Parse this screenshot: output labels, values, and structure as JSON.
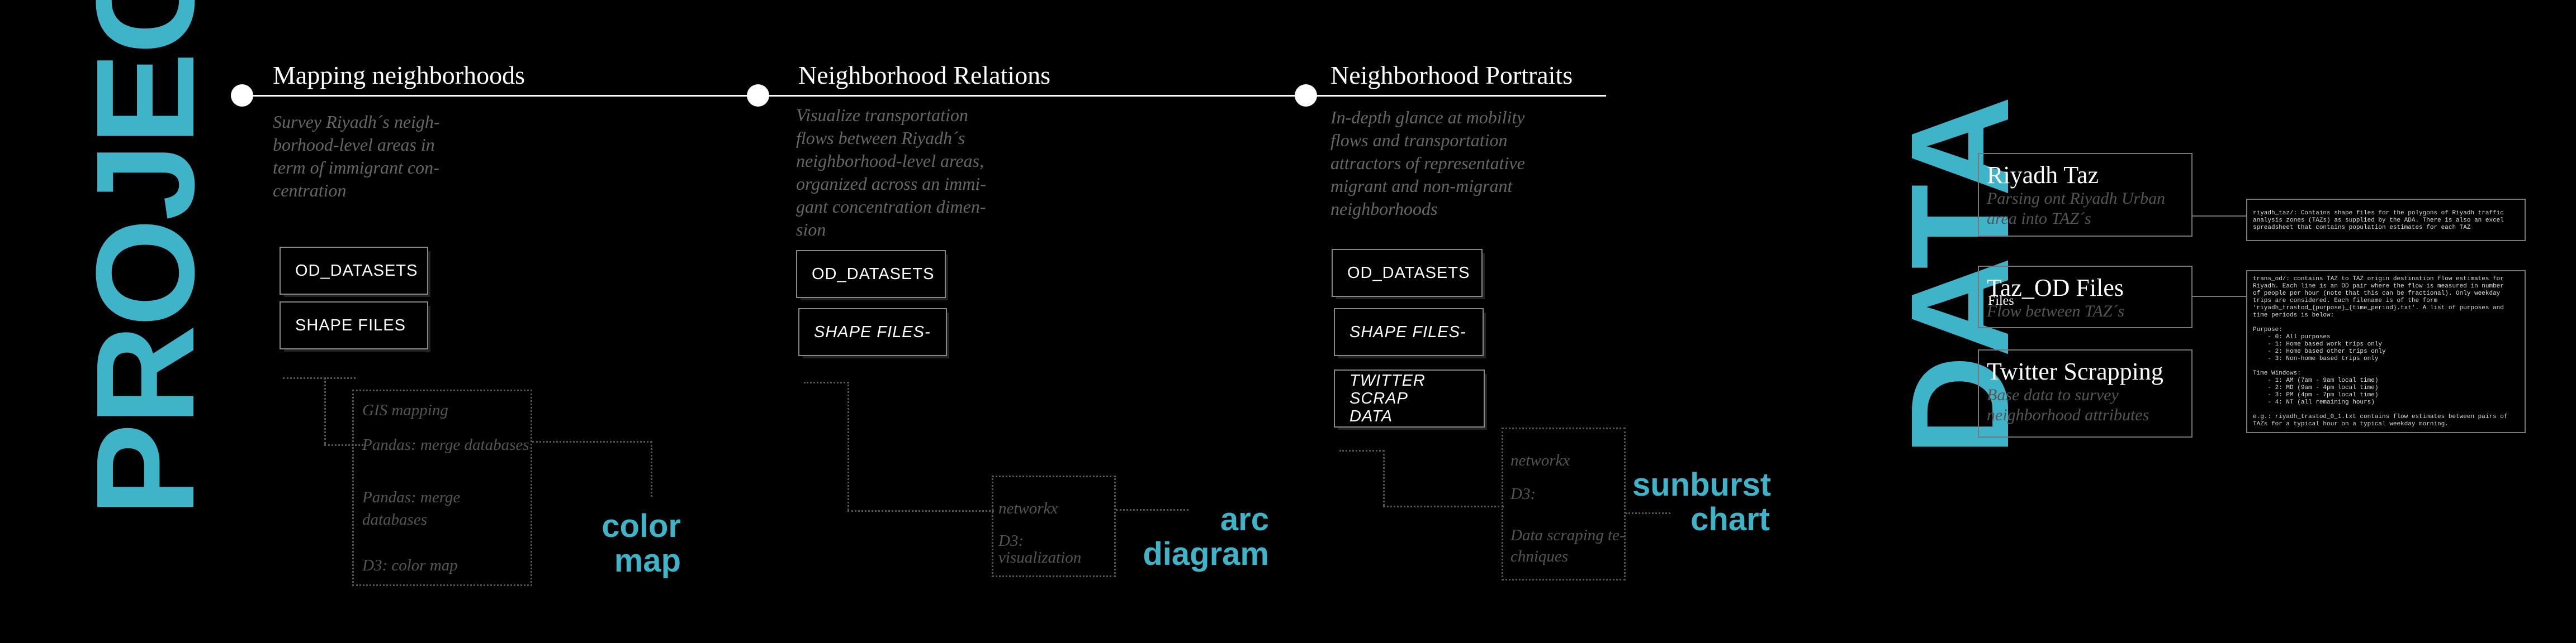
{
  "project": {
    "title": "PROJECT",
    "phases": [
      {
        "title": "Mapping neighborhoods",
        "description": "Survey Riyadh´s neigh-borhood-level areas in term of  immigrant con-centration",
        "datasets": [
          "OD_DATASETS",
          "SHAPE FILES"
        ],
        "tools": [
          "GIS mapping",
          "Pandas: merge databases",
          "Pandas: merge",
          "databases",
          "D3: color map"
        ],
        "viz_line1": "color",
        "viz_line2": "map"
      },
      {
        "title": "Neighborhood Relations",
        "description": "Visualize transportation flows between Riyadh´s neighborhood-level areas, organized across an immi-gant concentration dimen-sion",
        "datasets": [
          "OD_DATASETS",
          "SHAPE FILES-"
        ],
        "tools": [
          "networkx",
          "D3:",
          "visualization"
        ],
        "viz_line1": "arc",
        "viz_line2": "diagram"
      },
      {
        "title": "Neighborhood Portraits",
        "description": "In-depth glance at mobility flows and transportation attractors of  representative migrant and non-migrant neighborhoods",
        "datasets": [
          "OD_DATASETS",
          "SHAPE FILES-",
          "TWITTER SCRAP",
          "DATA"
        ],
        "tools": [
          "networkx",
          "D3:",
          "Data scraping te-",
          "chniques"
        ],
        "viz_line1": "sunburst",
        "viz_line2": "chart"
      }
    ]
  },
  "data": {
    "title": "DATA",
    "sources": [
      {
        "title": "Riyadh Taz",
        "subtitle": "Parsing ont Riyadh Urban area into TAZ´s"
      },
      {
        "title": "Taz_OD Files",
        "overlay": "Files",
        "subtitle": "Flow between TAZ´s"
      },
      {
        "title": "Twitter Scrapping",
        "subtitle": "Base data to survey neighborhood attributes"
      }
    ],
    "info_taz": "riyadh_taz/: Contains shape files for the polygons of Riyadh traffic\nanalysis zones (TAZs) as supplied by the ADA. There is also an excel\nspreadsheet that contains population estimates for each TAZ",
    "info_od": "trans_od/: contains TAZ to TAZ origin destination flow estimates for\nRiyadh. Each line is an OD pair where the flow is measured in number\nof people per hour (note that this can be fractional). Only weekday\ntrips are considered. Each filename is of the form\n'riyadh_trastod_{purpose}_{time_period}.txt'. A list of purposes and\ntime periods is below:\n\nPurpose:\n    - 0: All purposes\n    - 1: Home based work trips only\n    - 2: Home based other trips only\n    - 3: Non-home based trips only\n\nTime Windows:\n    - 1: AM (7am - 9am local time)\n    - 2: MD (9am - 4pm local time)\n    - 3: PM (4pm - 7pm local time)\n    - 4: NT (all remaining hours)\n\ne.g.: riyadh_trastod_0_1.txt contains flow estimates between pairs of\nTAZs for a typical hour on a typical weekday morning."
  }
}
